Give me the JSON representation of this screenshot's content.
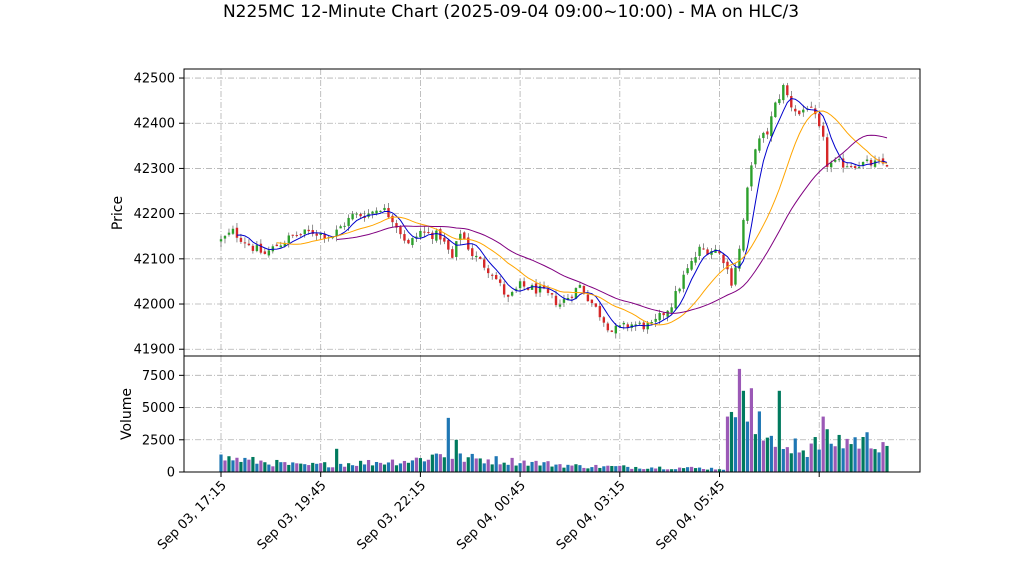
{
  "chart_data": {
    "type": "candlestick",
    "title": "N225MC 12-Minute Chart (2025-09-04 09:00~10:00) - MA on HLC/3",
    "price_panel": {
      "ylabel": "Price",
      "ylim": [
        41885,
        42520
      ],
      "yticks": [
        41900,
        42000,
        42100,
        42200,
        42300,
        42400,
        42500
      ]
    },
    "volume_panel": {
      "ylabel": "Volume",
      "ylim": [
        0,
        9000
      ],
      "yticks": [
        0,
        2500,
        5000,
        7500
      ],
      "ytick_labels": [
        "0",
        "2500",
        "5000",
        "7500"
      ]
    },
    "x_axis": {
      "bar_count": 168,
      "tick_labels": [
        "Sep 03, 17:15",
        "Sep 03, 19:45",
        "Sep 03, 22:15",
        "Sep 04, 00:45",
        "Sep 04, 03:15",
        "Sep 04, 05:45",
        ""
      ],
      "tick_bar_index": [
        0,
        25,
        50,
        75,
        100,
        125,
        150
      ]
    },
    "grid": true,
    "colors": {
      "up": "#2ca02c",
      "down": "#d62728",
      "ma_short": "#0000cc",
      "ma_mid": "#ffa500",
      "ma_long": "#800080",
      "volume_a": "#1f77b4",
      "volume_b": "#9b59b6",
      "volume_c": "#007a5e"
    },
    "close_anchors": [
      [
        0,
        42140
      ],
      [
        3,
        42160
      ],
      [
        8,
        42125
      ],
      [
        11,
        42110
      ],
      [
        14,
        42130
      ],
      [
        18,
        42150
      ],
      [
        23,
        42160
      ],
      [
        28,
        42150
      ],
      [
        30,
        42170
      ],
      [
        33,
        42195
      ],
      [
        37,
        42200
      ],
      [
        40,
        42215
      ],
      [
        43,
        42190
      ],
      [
        47,
        42130
      ],
      [
        50,
        42160
      ],
      [
        55,
        42150
      ],
      [
        58,
        42100
      ],
      [
        60,
        42160
      ],
      [
        63,
        42110
      ],
      [
        68,
        42070
      ],
      [
        72,
        42010
      ],
      [
        75,
        42040
      ],
      [
        80,
        42030
      ],
      [
        85,
        42000
      ],
      [
        90,
        42040
      ],
      [
        94,
        41990
      ],
      [
        98,
        41940
      ],
      [
        103,
        41955
      ],
      [
        108,
        41950
      ],
      [
        113,
        42000
      ],
      [
        116,
        42060
      ],
      [
        120,
        42120
      ],
      [
        124,
        42120
      ],
      [
        126,
        42100
      ],
      [
        128,
        42050
      ],
      [
        130,
        42120
      ],
      [
        132,
        42250
      ],
      [
        134,
        42350
      ],
      [
        137,
        42380
      ],
      [
        139,
        42440
      ],
      [
        141,
        42480
      ],
      [
        143,
        42440
      ],
      [
        145,
        42420
      ],
      [
        147,
        42440
      ],
      [
        149,
        42410
      ],
      [
        151,
        42360
      ],
      [
        152,
        42310
      ]
    ],
    "volume_profile": [
      [
        0,
        1100
      ],
      [
        20,
        500
      ],
      [
        35,
        700
      ],
      [
        48,
        900
      ],
      [
        55,
        1400
      ],
      [
        60,
        1100
      ],
      [
        75,
        800
      ],
      [
        90,
        450
      ],
      [
        110,
        350
      ],
      [
        120,
        300
      ],
      [
        126,
        250
      ],
      [
        127,
        1800
      ],
      [
        129,
        5200
      ],
      [
        131,
        5500
      ],
      [
        134,
        3000
      ],
      [
        138,
        2200
      ],
      [
        145,
        1600
      ],
      [
        152,
        2400
      ]
    ],
    "volume_spikes": [
      [
        29,
        1800
      ],
      [
        57,
        4200
      ],
      [
        59,
        2500
      ],
      [
        127,
        4300
      ],
      [
        130,
        8000
      ],
      [
        131,
        6300
      ],
      [
        133,
        6500
      ],
      [
        135,
        4700
      ],
      [
        140,
        6300
      ],
      [
        144,
        2600
      ],
      [
        151,
        4300
      ]
    ],
    "ma_periods": [
      5,
      15,
      30
    ]
  }
}
